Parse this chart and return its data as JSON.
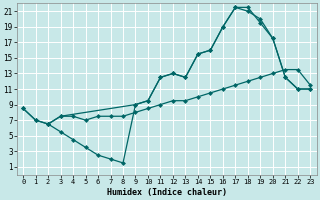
{
  "xlabel": "Humidex (Indice chaleur)",
  "background_color": "#c8e8e8",
  "grid_color": "#ffffff",
  "line_color": "#006666",
  "xlim": [
    -0.5,
    23.5
  ],
  "ylim": [
    0,
    22
  ],
  "yticks": [
    1,
    3,
    5,
    7,
    9,
    11,
    13,
    15,
    17,
    19,
    21
  ],
  "xticks": [
    0,
    1,
    2,
    3,
    4,
    5,
    6,
    7,
    8,
    9,
    10,
    11,
    12,
    13,
    14,
    15,
    16,
    17,
    18,
    19,
    20,
    21,
    22,
    23
  ],
  "line1_x": [
    0,
    1,
    2,
    3,
    4,
    5,
    6,
    7,
    8,
    9,
    10,
    11,
    12,
    13,
    14,
    15,
    16,
    17,
    18,
    19,
    20,
    21,
    22,
    23
  ],
  "line1_y": [
    8.5,
    7.0,
    6.5,
    5.5,
    4.5,
    3.5,
    2.5,
    2.0,
    1.5,
    9.0,
    9.5,
    12.5,
    13.0,
    12.5,
    15.5,
    16.0,
    19.0,
    21.5,
    21.5,
    19.5,
    17.5,
    12.5,
    11.0,
    11.0
  ],
  "line2_x": [
    0,
    1,
    2,
    3,
    4,
    5,
    6,
    7,
    8,
    9,
    10,
    11,
    12,
    13,
    14,
    15,
    16,
    17,
    18,
    19,
    20,
    21,
    22,
    23
  ],
  "line2_y": [
    8.5,
    7.0,
    6.5,
    7.5,
    7.5,
    7.0,
    7.5,
    7.5,
    7.5,
    8.0,
    8.5,
    9.0,
    9.5,
    9.5,
    10.0,
    10.5,
    11.0,
    11.5,
    12.0,
    12.5,
    13.0,
    13.5,
    13.5,
    11.5
  ],
  "line3_x": [
    2,
    3,
    9,
    10,
    11,
    12,
    13,
    14,
    15,
    16,
    17,
    18,
    19,
    20,
    21,
    22,
    23
  ],
  "line3_y": [
    6.5,
    7.5,
    9.0,
    9.5,
    12.5,
    13.0,
    12.5,
    15.5,
    16.0,
    19.0,
    21.5,
    21.0,
    20.0,
    17.5,
    12.5,
    11.0,
    11.0
  ]
}
